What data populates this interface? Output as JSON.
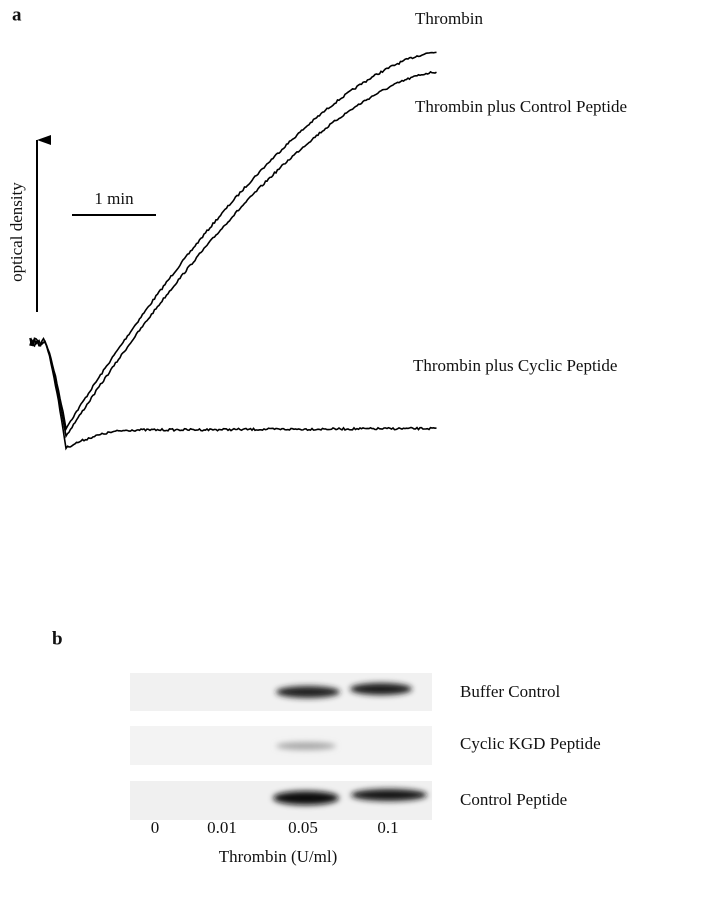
{
  "panel_a": {
    "label": "a",
    "scale_bar": "1 min",
    "y_axis_label": "optical density",
    "traces": [
      {
        "label": "Thrombin"
      },
      {
        "label": "Thrombin plus Control Peptide"
      },
      {
        "label": "Thrombin plus Cyclic Peptide"
      }
    ]
  },
  "panel_b": {
    "label": "b",
    "rows": [
      "Buffer Control",
      "Cyclic KGD Peptide",
      "Control Peptide"
    ],
    "columns": [
      "0",
      "0.01",
      "0.05",
      "0.1"
    ],
    "x_axis_label": "Thrombin (U/ml)"
  }
}
